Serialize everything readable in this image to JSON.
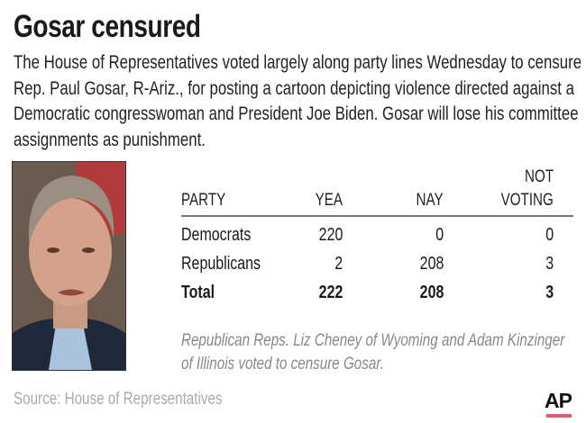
{
  "title": "Gosar censured",
  "intro": "The House of Representatives voted largely along party lines Wednesday to censure Rep. Paul Gosar, R-Ariz., for posting a cartoon depicting violence directed against a Democratic congresswoman and President Joe Biden. Gosar will lose his committee assignments as punishment.",
  "table": {
    "headers": {
      "party": "PARTY",
      "yea": "YEA",
      "nay": "NAY",
      "not_voting_1": "NOT",
      "not_voting_2": "VOTING"
    },
    "rows": [
      {
        "party": "Democrats",
        "yea": "220",
        "nay": "0",
        "not_voting": "0"
      },
      {
        "party": "Republicans",
        "yea": "2",
        "nay": "208",
        "not_voting": "3"
      },
      {
        "party": "Total",
        "yea": "222",
        "nay": "208",
        "not_voting": "3"
      }
    ]
  },
  "caption": "Republican Reps. Liz Cheney of Wyoming and Adam Kinzinger of Illinois voted to censure Gosar.",
  "source": "Source: House of Representatives",
  "logo": "AP",
  "colors": {
    "accent": "#e0596e"
  }
}
